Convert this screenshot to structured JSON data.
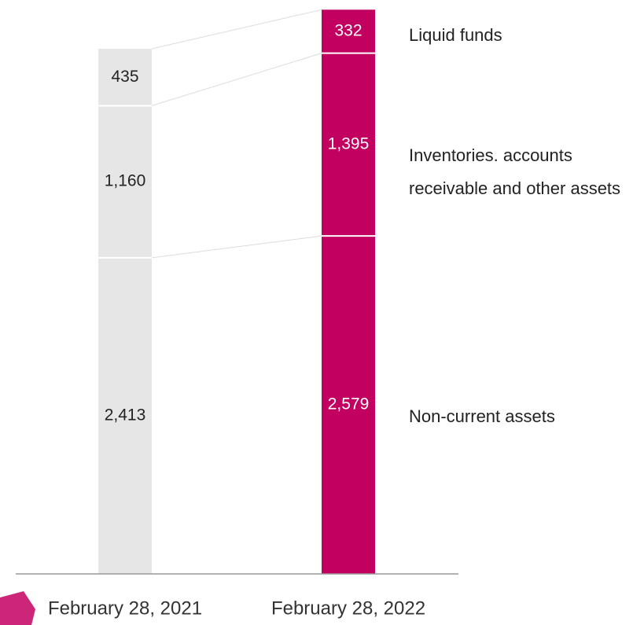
{
  "chart_data": {
    "type": "stacked_bar",
    "categories": [
      "February 28, 2021",
      "February 28, 2022"
    ],
    "colors": [
      "#e6e6e6",
      "#c2005f"
    ],
    "label_colors": [
      "#222222",
      "#ffffff"
    ],
    "series": [
      {
        "name": "Non-current assets",
        "values": [
          2413,
          2579
        ],
        "value_labels": [
          "2,413",
          "2,579"
        ]
      },
      {
        "name": "Inventories. accounts receivable and other assets",
        "values": [
          1160,
          1395
        ],
        "value_labels": [
          "1,160",
          "1,395"
        ]
      },
      {
        "name": "Liquid funds",
        "values": [
          435,
          332
        ],
        "value_labels": [
          "435",
          "332"
        ]
      }
    ]
  }
}
